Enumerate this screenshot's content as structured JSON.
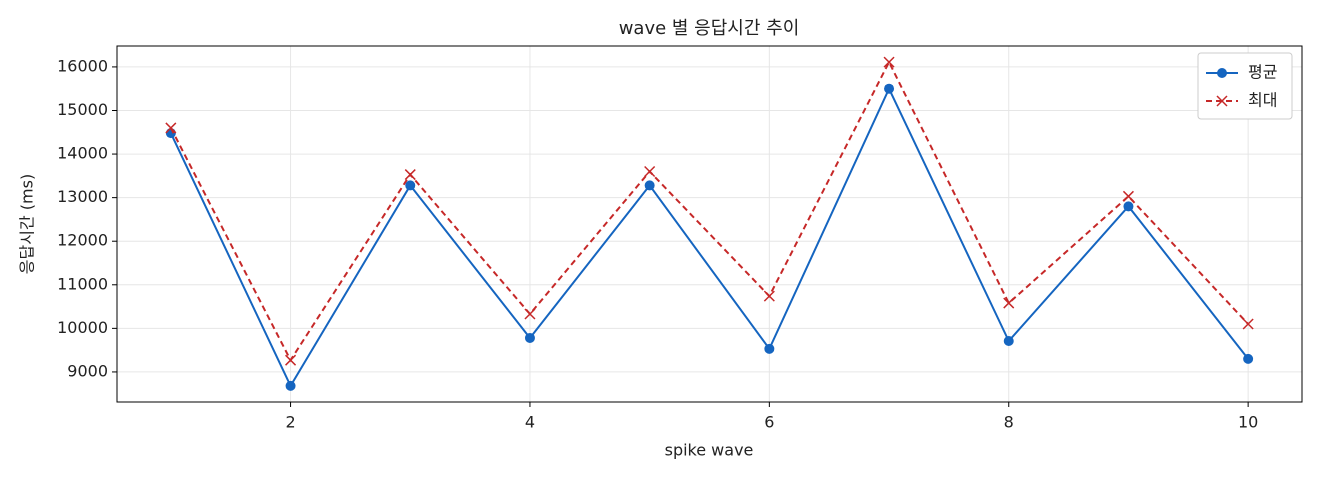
{
  "chart_data": {
    "type": "line",
    "title": "wave 별 응답시간 추이",
    "xlabel": "spike wave",
    "ylabel": "응답시간 (ms)",
    "x": [
      1,
      2,
      3,
      4,
      5,
      6,
      7,
      8,
      9,
      10
    ],
    "series": [
      {
        "name": "평균",
        "color": "#1565c0",
        "marker": "o",
        "linestyle": "solid",
        "values": [
          14480,
          8680,
          13280,
          9780,
          13280,
          9530,
          15500,
          9710,
          12800,
          9300
        ]
      },
      {
        "name": "최대",
        "color": "#c62828",
        "marker": "x",
        "linestyle": "dashed",
        "values": [
          14600,
          9270,
          13530,
          10330,
          13600,
          10740,
          16110,
          10580,
          13030,
          10100
        ]
      }
    ],
    "xlim": [
      0.55,
      10.45
    ],
    "xticks": [
      2,
      4,
      6,
      8,
      10
    ],
    "ylim": [
      8310,
      16480
    ],
    "yticks": [
      9000,
      10000,
      11000,
      12000,
      13000,
      14000,
      15000,
      16000
    ],
    "grid": true,
    "legend": "upper right"
  }
}
